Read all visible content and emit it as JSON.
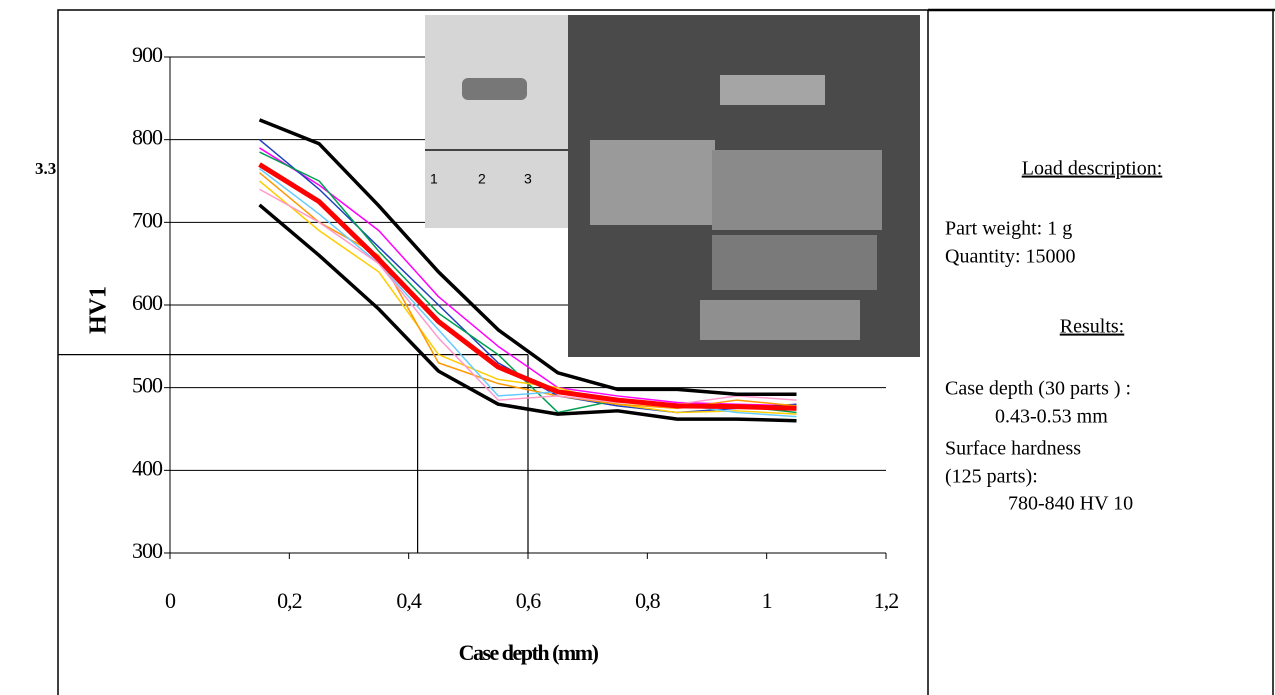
{
  "section_label": "3.3",
  "photo_ruler_labels": [
    "1",
    "2",
    "3"
  ],
  "panel": {
    "load_heading": "Load description:",
    "part_weight": "Part weight: 1 g",
    "quantity": "Quantity: 15000",
    "results_heading": "Results:",
    "case_depth": "Case depth (30 parts ) :",
    "case_depth_value": "0.43-0.53 mm",
    "surface_hardness": "Surface hardness",
    "surface_parts": "(125 parts):",
    "surface_value": "780-840 HV 10"
  },
  "chart_data": {
    "type": "line",
    "xlabel": "Case depth (mm)",
    "ylabel": "HV1",
    "xlim": [
      0,
      1.2
    ],
    "ylim": [
      300,
      900
    ],
    "xticks": [
      0,
      {
        "value": 0.2,
        "label": "0,2"
      },
      {
        "value": 0.4,
        "label": "0,4"
      },
      {
        "value": 0.6,
        "label": "0,6"
      },
      {
        "value": 0.8,
        "label": "0,8"
      },
      1,
      {
        "value": 1.2,
        "label": "1,2"
      }
    ],
    "yticks": [
      300,
      400,
      500,
      600,
      700,
      800,
      900
    ],
    "grid": true,
    "reference_lines": {
      "y": 540,
      "x": [
        0.415,
        0.6
      ]
    },
    "x": [
      0.15,
      0.25,
      0.35,
      0.45,
      0.55,
      0.65,
      0.75,
      0.85,
      0.95,
      1.05
    ],
    "series": [
      {
        "color": "#ff00ff",
        "line_width": 1.5,
        "values": [
          790,
          745,
          690,
          610,
          550,
          500,
          490,
          482,
          480,
          478
        ]
      },
      {
        "color": "#1f3fbf",
        "line_width": 1.5,
        "values": [
          800,
          740,
          670,
          600,
          530,
          490,
          478,
          470,
          475,
          480
        ]
      },
      {
        "color": "#00a050",
        "line_width": 1.5,
        "values": [
          785,
          750,
          665,
          590,
          540,
          470,
          485,
          480,
          478,
          470
        ]
      },
      {
        "color": "#ffcc00",
        "line_width": 1.5,
        "values": [
          750,
          690,
          640,
          540,
          510,
          500,
          480,
          470,
          472,
          468
        ]
      },
      {
        "color": "#ff9900",
        "line_width": 1.5,
        "values": [
          760,
          700,
          660,
          530,
          505,
          490,
          480,
          475,
          485,
          478
        ]
      },
      {
        "color": "#66ccff",
        "line_width": 1.5,
        "values": [
          765,
          710,
          650,
          570,
          490,
          495,
          485,
          480,
          470,
          465
        ]
      },
      {
        "color": "#ff99cc",
        "line_width": 1.5,
        "values": [
          740,
          700,
          650,
          560,
          485,
          490,
          482,
          480,
          490,
          485
        ]
      },
      {
        "color": "#000000",
        "line_width": 3.5,
        "values": [
          824,
          795,
          720,
          640,
          570,
          518,
          498,
          498,
          492,
          492
        ]
      },
      {
        "color": "#000000",
        "line_width": 3.5,
        "values": [
          721,
          660,
          595,
          520,
          480,
          468,
          472,
          462,
          462,
          460
        ]
      },
      {
        "color": "#ff0000",
        "line_width": 5,
        "values": [
          770,
          725,
          655,
          580,
          525,
          495,
          485,
          478,
          477,
          475
        ]
      }
    ]
  }
}
